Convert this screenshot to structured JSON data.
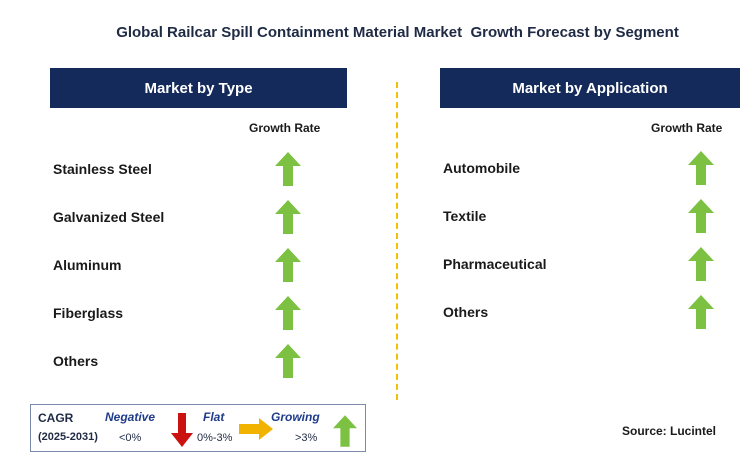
{
  "title": "Global Railcar Spill Containment Material Market  Growth Forecast by Segment",
  "left_panel": {
    "header": "Market by Type",
    "growth_label": "Growth Rate",
    "items": [
      {
        "label": "Stainless Steel",
        "trend": "growing"
      },
      {
        "label": "Galvanized Steel",
        "trend": "growing"
      },
      {
        "label": "Aluminum",
        "trend": "growing"
      },
      {
        "label": "Fiberglass",
        "trend": "growing"
      },
      {
        "label": "Others",
        "trend": "growing"
      }
    ]
  },
  "right_panel": {
    "header": "Market by Application",
    "growth_label": "Growth Rate",
    "items": [
      {
        "label": "Automobile",
        "trend": "growing"
      },
      {
        "label": "Textile",
        "trend": "growing"
      },
      {
        "label": "Pharmaceutical",
        "trend": "growing"
      },
      {
        "label": "Others",
        "trend": "growing"
      }
    ]
  },
  "legend": {
    "cagr_label": "CAGR",
    "period": "(2025-2031)",
    "negative": {
      "name": "Negative",
      "range": "<0%",
      "icon": "down-arrow-icon",
      "color": "#cc1111"
    },
    "flat": {
      "name": "Flat",
      "range": "0%-3%",
      "icon": "right-arrow-icon",
      "color": "#f2b200"
    },
    "growing": {
      "name": "Growing",
      "range": ">3%",
      "icon": "up-arrow-icon",
      "color": "#7dc143"
    }
  },
  "source": "Source: Lucintel",
  "colors": {
    "header_bg": "#142a5a",
    "divider": "#f2c200",
    "growing": "#7dc143"
  }
}
